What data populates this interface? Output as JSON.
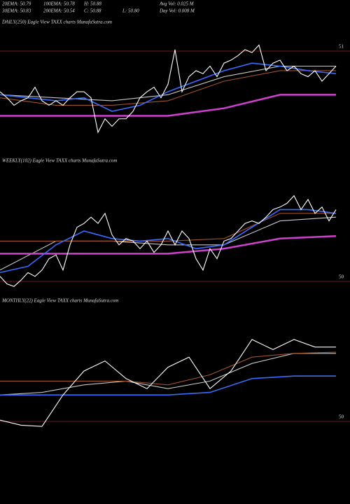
{
  "header": {
    "rows": [
      [
        "20EMA: 50.79",
        "100EMA: 50.78",
        "H: 50.88",
        "Avg Vol: 0.025 M"
      ],
      [
        "30EMA: 50.83",
        "200EMA: 50.54",
        "C: 50.88",
        "L: 50.80",
        "Day Vol: 0.008 M"
      ]
    ]
  },
  "chart_data": [
    {
      "type": "line",
      "title": "DAILY(250) Eagle  View  TAXX  charts MunafaSutra.com",
      "ylim": [
        50.2,
        51.2
      ],
      "yticks": [
        51
      ],
      "grid": true,
      "series": [
        {
          "color": "#c8c8c8",
          "values": [
            50.71,
            50.69,
            50.67,
            50.71,
            50.83,
            50.9,
            50.9
          ]
        },
        {
          "color": "#a0522d",
          "values": [
            50.69,
            50.64,
            50.64,
            50.67,
            50.8,
            50.87,
            50.87
          ]
        },
        {
          "color": "#d040d0",
          "values": [
            50.57,
            50.57,
            50.57,
            50.57,
            50.62,
            50.71,
            50.71
          ]
        },
        {
          "color": "#3a6bff",
          "values": [
            50.71,
            50.69,
            50.67,
            50.69,
            50.6,
            50.64,
            50.73,
            50.8,
            50.87,
            50.92,
            50.9,
            50.87,
            50.85
          ]
        },
        {
          "color": "#ffffff",
          "values": [
            50.73,
            50.69,
            50.64,
            50.67,
            50.69,
            50.76,
            50.67,
            50.64,
            50.67,
            50.64,
            50.69,
            50.73,
            50.73,
            50.69,
            50.46,
            50.55,
            50.5,
            50.55,
            50.55,
            50.6,
            50.69,
            50.73,
            50.76,
            50.69,
            50.78,
            51.01,
            50.73,
            50.83,
            50.87,
            50.85,
            50.9,
            50.83,
            50.92,
            50.94,
            50.97,
            51.01,
            50.99,
            51.04,
            50.87,
            50.92,
            50.94,
            50.87,
            50.9,
            50.85,
            50.83,
            50.87,
            50.8,
            50.85,
            50.9
          ]
        }
      ]
    },
    {
      "type": "line",
      "title": "WEEKLY(102) Eagle  View  TAXX  charts MunafaSutra.com",
      "ylim": [
        49.9,
        50.9
      ],
      "yticks": [
        50
      ],
      "grid": true,
      "series": [
        {
          "color": "#c8c8c8",
          "values": [
            50.09,
            50.32,
            50.32,
            50.29,
            50.29,
            50.48,
            50.51
          ]
        },
        {
          "color": "#a0522d",
          "values": [
            50.32,
            50.32,
            50.32,
            50.32,
            50.34,
            50.54,
            50.54
          ]
        },
        {
          "color": "#d040d0",
          "values": [
            50.22,
            50.22,
            50.22,
            50.22,
            50.26,
            50.34,
            50.36
          ]
        },
        {
          "color": "#3a6bff",
          "values": [
            50.07,
            50.12,
            50.29,
            50.4,
            50.34,
            50.32,
            50.34,
            50.26,
            50.29,
            50.43,
            50.57,
            50.57,
            50.54
          ]
        },
        {
          "color": "#ffffff",
          "values": [
            50.04,
            49.98,
            49.96,
            50.01,
            50.07,
            50.04,
            50.09,
            50.18,
            50.21,
            50.09,
            50.29,
            50.43,
            50.46,
            50.51,
            50.46,
            50.54,
            50.37,
            50.29,
            50.34,
            50.32,
            50.26,
            50.32,
            50.23,
            50.29,
            50.4,
            50.29,
            50.4,
            50.34,
            50.18,
            50.09,
            50.26,
            50.18,
            50.32,
            50.34,
            50.4,
            50.46,
            50.48,
            50.46,
            50.51,
            50.57,
            50.59,
            50.62,
            50.68,
            50.57,
            50.65,
            50.54,
            50.59,
            50.48,
            50.57
          ]
        }
      ]
    },
    {
      "type": "line",
      "title": "MONTHLY(22) Eagle  View  TAXX  charts MunafaSutra.com",
      "ylim": [
        49.9,
        50.9
      ],
      "yticks": [
        50
      ],
      "grid": true,
      "series": [
        {
          "color": "#c8c8c8",
          "values": [
            50.21,
            50.23,
            50.29,
            50.32,
            50.26,
            50.32,
            50.46,
            50.54,
            50.54
          ]
        },
        {
          "color": "#a0522d",
          "values": [
            50.32,
            50.32,
            50.32,
            50.32,
            50.29,
            50.37,
            50.51,
            50.54,
            50.55
          ]
        },
        {
          "color": "#3a6bff",
          "values": [
            50.21,
            50.21,
            50.21,
            50.21,
            50.21,
            50.23,
            50.34,
            50.36,
            50.36
          ]
        },
        {
          "color": "#ffffff",
          "values": [
            50.01,
            49.97,
            49.96,
            50.21,
            50.4,
            50.48,
            50.34,
            50.26,
            50.43,
            50.51,
            50.26,
            50.4,
            50.65,
            50.57,
            50.65,
            50.59,
            50.59
          ]
        }
      ]
    }
  ]
}
